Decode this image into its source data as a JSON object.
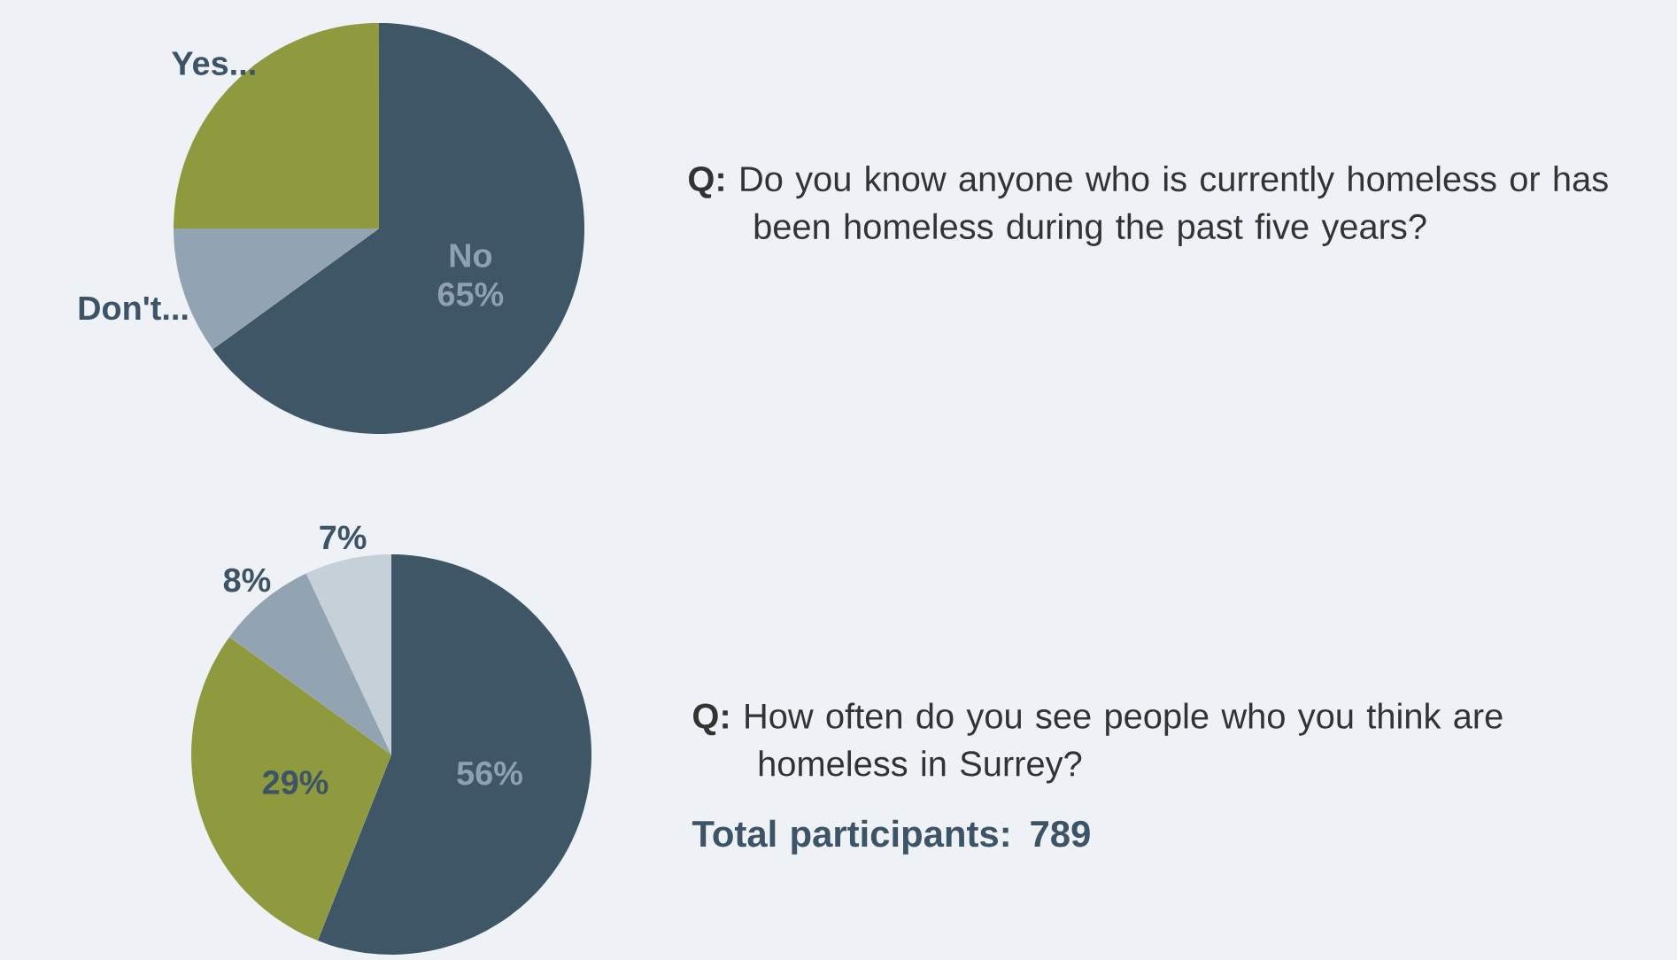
{
  "chart_data": [
    {
      "type": "pie",
      "categories": [
        "No",
        "Don't...",
        "Yes..."
      ],
      "values": [
        65,
        10,
        25
      ],
      "colors": [
        "#3f5666",
        "#92a3b1",
        "#8f993d"
      ],
      "value_labels": [
        "65%",
        null,
        null
      ],
      "annotations": [
        "**Q:** Do you know anyone who is currently homeless or has been homeless during the past five years?"
      ]
    },
    {
      "type": "pie",
      "categories": [
        null,
        null,
        null,
        null
      ],
      "values": [
        56,
        29,
        8,
        7
      ],
      "colors": [
        "#3f5666",
        "#8f993d",
        "#92a3b1",
        "#c5d0d9"
      ],
      "value_labels": [
        "56%",
        "29%",
        "8%",
        "7%"
      ],
      "annotations": [
        "**Q:** How often do you see people who you think are homeless in Surrey?",
        "Total participants: 789"
      ]
    }
  ]
}
